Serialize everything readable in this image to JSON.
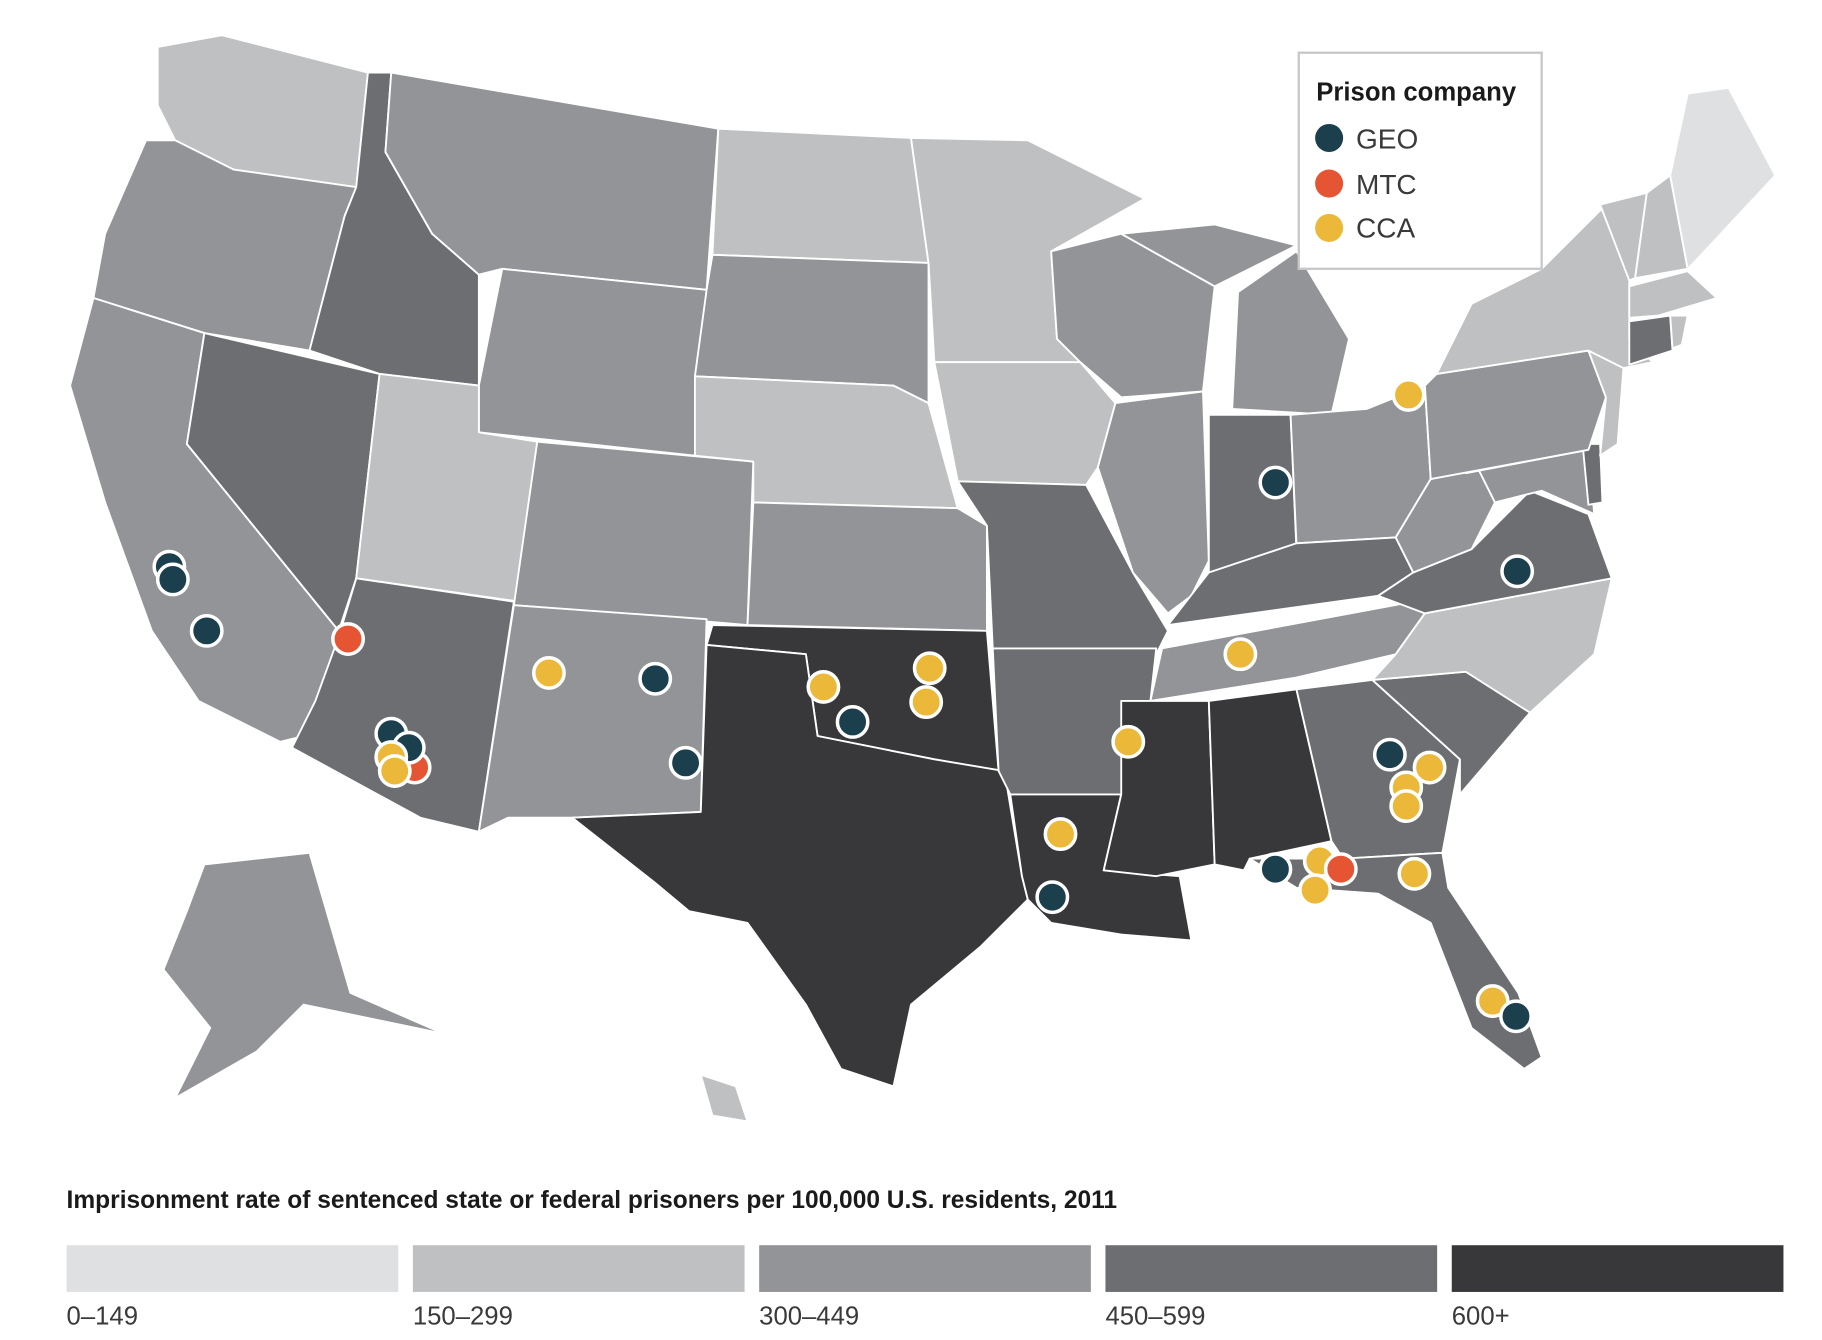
{
  "legend": {
    "title": "Prison company",
    "items": [
      {
        "label": "GEO",
        "color": "#1c3f4e"
      },
      {
        "label": "MTC",
        "color": "#e55433"
      },
      {
        "label": "CCA",
        "color": "#ecb83a"
      }
    ]
  },
  "scale": {
    "title": "Imprisonment rate of sentenced state or federal prisoners per 100,000 U.S. residents, 2011",
    "bins": [
      {
        "label": "0–149",
        "color": "#dfe0e2"
      },
      {
        "label": "150–299",
        "color": "#bfc0c2"
      },
      {
        "label": "300–449",
        "color": "#939497"
      },
      {
        "label": "450–599",
        "color": "#6d6e71"
      },
      {
        "label": "600+",
        "color": "#38383b"
      }
    ]
  },
  "state_bins": {
    "WA": 1,
    "OR": 2,
    "CA": 2,
    "NV": 3,
    "ID": 3,
    "MT": 2,
    "WY": 2,
    "UT": 1,
    "CO": 2,
    "AZ": 3,
    "NM": 2,
    "ND": 1,
    "SD": 2,
    "NE": 1,
    "KS": 2,
    "OK": 4,
    "TX": 4,
    "MN": 1,
    "IA": 1,
    "MO": 3,
    "AR": 3,
    "LA": 4,
    "WI": 2,
    "IL": 2,
    "MI": 2,
    "IN": 3,
    "OH": 2,
    "KY": 3,
    "TN": 2,
    "MS": 4,
    "AL": 4,
    "GA": 3,
    "FL": 3,
    "SC": 3,
    "NC": 1,
    "VA": 3,
    "WV": 2,
    "PA": 2,
    "NY": 1,
    "ME": 0,
    "NH": 1,
    "VT": 1,
    "MA": 1,
    "CT": 3,
    "RI": 1,
    "NJ": 1,
    "DE": 3,
    "MD": 2,
    "AK": 2,
    "HI": 1
  },
  "facilities": [
    {
      "company": "GEO",
      "state": "CA"
    },
    {
      "company": "GEO",
      "state": "CA"
    },
    {
      "company": "GEO",
      "state": "CA"
    },
    {
      "company": "MTC",
      "state": "AZ"
    },
    {
      "company": "MTC",
      "state": "AZ"
    },
    {
      "company": "GEO",
      "state": "AZ"
    },
    {
      "company": "GEO",
      "state": "AZ"
    },
    {
      "company": "CCA",
      "state": "AZ"
    },
    {
      "company": "CCA",
      "state": "AZ"
    },
    {
      "company": "CCA",
      "state": "NM"
    },
    {
      "company": "GEO",
      "state": "NM"
    },
    {
      "company": "GEO",
      "state": "NM"
    },
    {
      "company": "CCA",
      "state": "OK"
    },
    {
      "company": "GEO",
      "state": "OK"
    },
    {
      "company": "CCA",
      "state": "OK"
    },
    {
      "company": "CCA",
      "state": "OK"
    },
    {
      "company": "CCA",
      "state": "MS"
    },
    {
      "company": "CCA",
      "state": "TN"
    },
    {
      "company": "CCA",
      "state": "OH"
    },
    {
      "company": "GEO",
      "state": "IN"
    },
    {
      "company": "GEO",
      "state": "VA"
    },
    {
      "company": "CCA",
      "state": "LA"
    },
    {
      "company": "GEO",
      "state": "LA"
    },
    {
      "company": "GEO",
      "state": "GA"
    },
    {
      "company": "CCA",
      "state": "GA"
    },
    {
      "company": "CCA",
      "state": "GA"
    },
    {
      "company": "CCA",
      "state": "GA"
    },
    {
      "company": "GEO",
      "state": "AL"
    },
    {
      "company": "CCA",
      "state": "FL"
    },
    {
      "company": "CCA",
      "state": "FL"
    },
    {
      "company": "MTC",
      "state": "FL"
    },
    {
      "company": "CCA",
      "state": "GA"
    },
    {
      "company": "CCA",
      "state": "FL"
    },
    {
      "company": "GEO",
      "state": "FL"
    }
  ]
}
